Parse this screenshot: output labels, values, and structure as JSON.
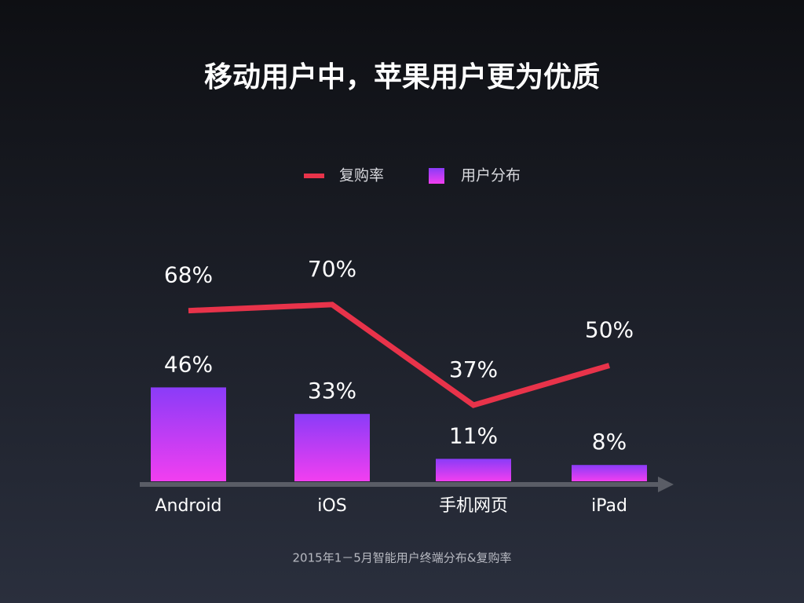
{
  "chart_data": {
    "type": "bar",
    "title": "移动用户中，苹果用户更为优质",
    "caption": "2015年1－5月智能用户终端分布&复购率",
    "categories": [
      "Android",
      "iOS",
      "手机网页",
      "iPad"
    ],
    "series": [
      {
        "name": "复购率",
        "type": "line",
        "axis": "y2",
        "color": "#e8334a",
        "values": [
          68,
          70,
          37,
          50
        ],
        "value_labels": [
          "68%",
          "70%",
          "37%",
          "50%"
        ]
      },
      {
        "name": "用户分布",
        "type": "bar",
        "color": "#a040f8",
        "values": [
          46,
          33,
          11,
          8
        ],
        "value_labels": [
          "46%",
          "33%",
          "11%",
          "8%"
        ]
      }
    ],
    "ylim": [
      0,
      100
    ],
    "y2lim": [
      12,
      79
    ]
  }
}
